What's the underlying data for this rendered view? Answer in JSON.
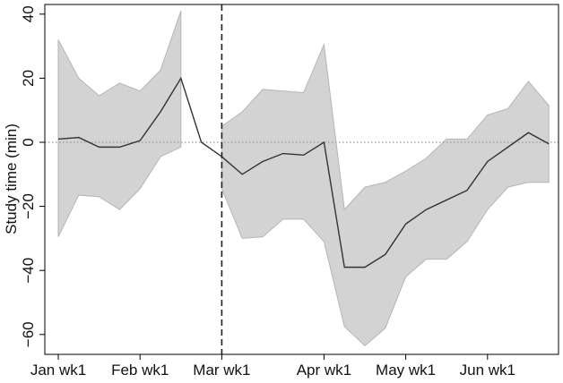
{
  "chart_data": {
    "type": "line",
    "ylabel": "Study time (min)",
    "xlabel": "",
    "ylim": [
      -65,
      43
    ],
    "x_tick_labels": [
      "Jan wk1",
      "Feb wk1",
      "Mar wk1",
      "Apr wk1",
      "May wk1",
      "Jun wk1"
    ],
    "x_tick_week_index": [
      0,
      4,
      8,
      13,
      17,
      21
    ],
    "y_ticks": [
      40,
      20,
      0,
      -20,
      -40,
      -60
    ],
    "y_tick_labels": [
      "40",
      "20",
      "0",
      "−20",
      "−40",
      "−60"
    ],
    "reference_line": {
      "y": 0,
      "style": "dotted"
    },
    "event_line": {
      "week_index": 8,
      "style": "dashed"
    },
    "series": [
      {
        "week_index": [
          0,
          1,
          2,
          3,
          4,
          5,
          6,
          7,
          8,
          9,
          10,
          11,
          12,
          13,
          14,
          15,
          16,
          17,
          18,
          19,
          20,
          21,
          22,
          23,
          24
        ],
        "values": [
          1,
          1.5,
          -1.5,
          -1.5,
          0.5,
          9.5,
          20,
          0,
          -4.5,
          -10,
          -6,
          -3.5,
          -4,
          0,
          -39,
          -39,
          -35,
          -25.5,
          -21,
          -18,
          -15,
          -6,
          -1.5,
          3,
          -0.5
        ],
        "ci_upper": [
          32,
          20,
          14.5,
          18.5,
          16,
          22.5,
          41,
          null,
          5,
          9.5,
          16.5,
          16,
          15.5,
          30.5,
          -21,
          -14,
          -12.5,
          -9,
          -5,
          1,
          1,
          8.5,
          10.5,
          19,
          11.5
        ],
        "ci_lower": [
          -29.5,
          -16.5,
          -17,
          -21,
          -14.5,
          -4.5,
          -1.5,
          null,
          -14.5,
          -30,
          -29.5,
          -24,
          -24,
          -31,
          -57.5,
          -63.5,
          -58,
          -42,
          -36.5,
          -36.5,
          -31,
          -21,
          -14,
          -12.5,
          -12.5
        ]
      }
    ],
    "colors": {
      "line": "#333333",
      "band": "#d3d3d3",
      "band_edge": "#b5b5b5",
      "axis": "#000000",
      "reference": "#999999"
    },
    "grid": false,
    "legend": "none"
  }
}
